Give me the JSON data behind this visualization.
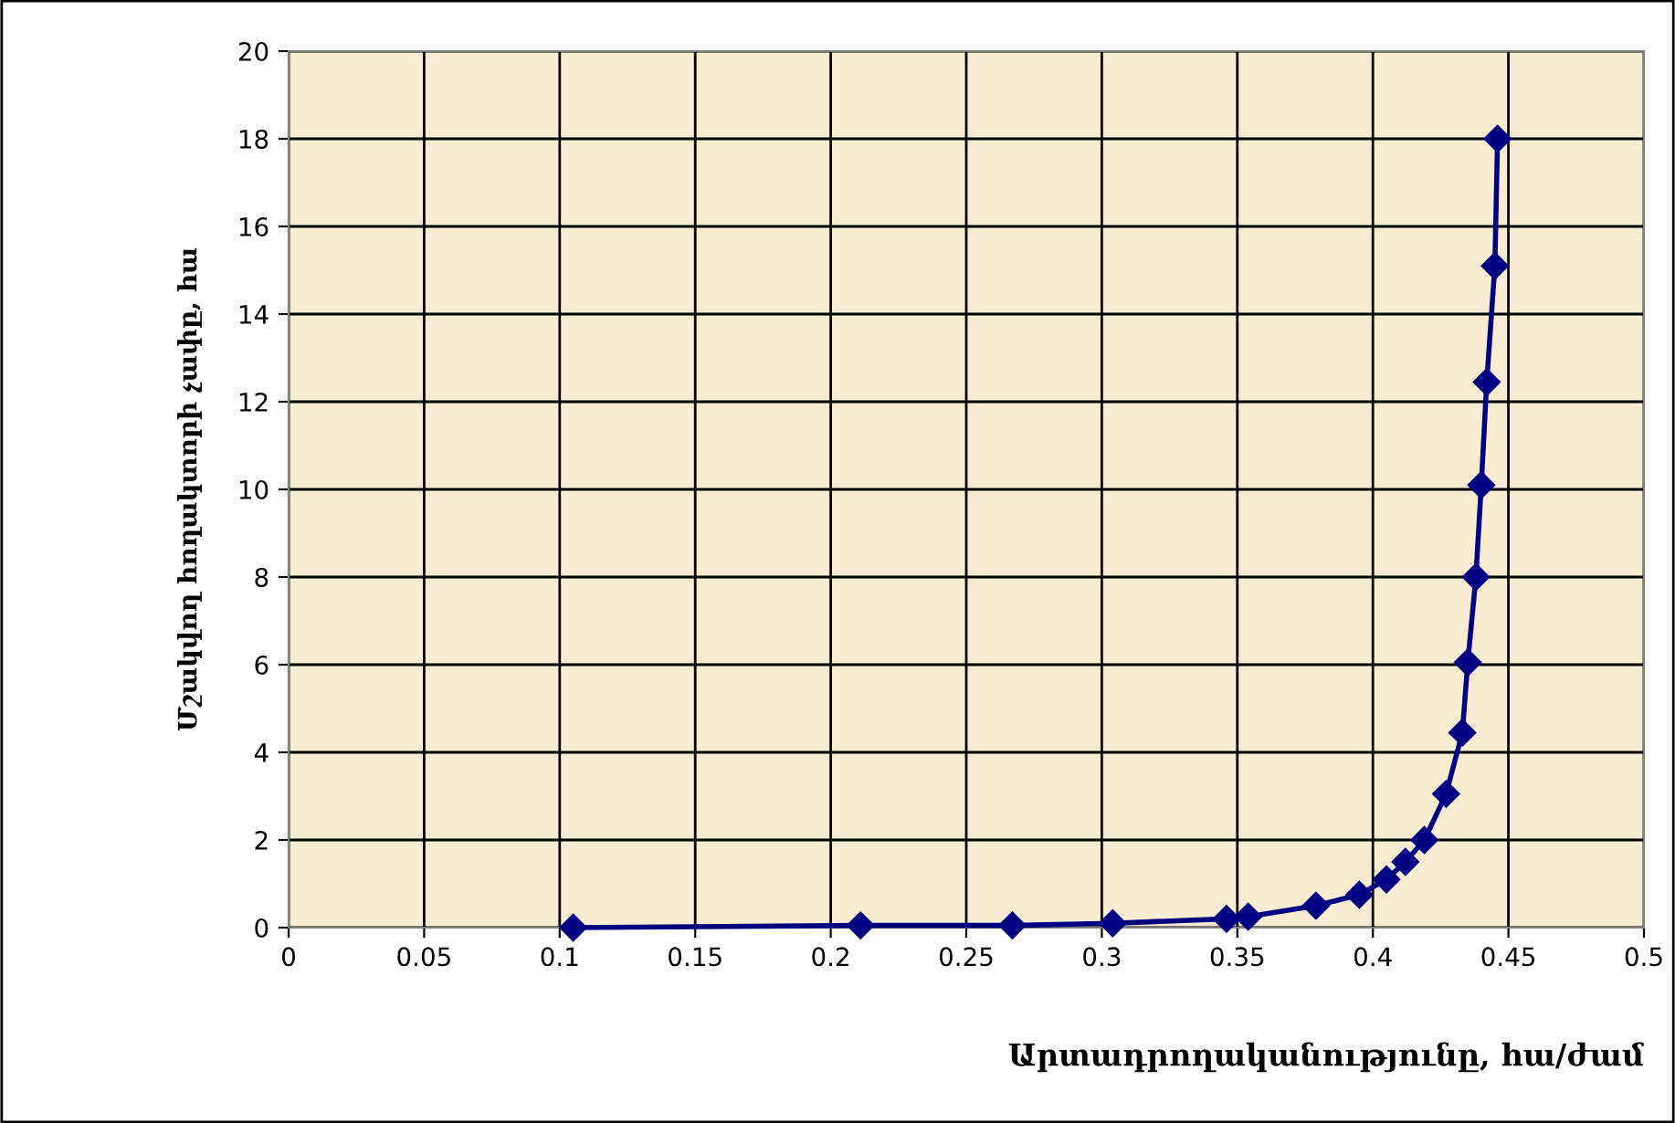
{
  "chart_data": {
    "type": "line",
    "xlabel": "Արտադրողականությունը, հա/ժամ",
    "ylabel": "Մշակվող հողակտորի չափը, հա",
    "x": [
      0.105,
      0.211,
      0.267,
      0.304,
      0.346,
      0.354,
      0.379,
      0.395,
      0.405,
      0.412,
      0.419,
      0.427,
      0.433,
      0.435,
      0.438,
      0.44,
      0.442,
      0.445,
      0.446
    ],
    "series": [
      {
        "color": "#000080",
        "values": [
          0,
          0.05,
          0.05,
          0.1,
          0.2,
          0.25,
          0.5,
          0.75,
          1.1,
          1.5,
          2.0,
          3.05,
          4.45,
          6.05,
          8.0,
          10.1,
          12.45,
          15.1,
          18.0
        ]
      }
    ],
    "xlim": [
      0,
      0.5
    ],
    "xticks": [
      0,
      0.05,
      0.1,
      0.15,
      0.2,
      0.25,
      0.3,
      0.35,
      0.4,
      0.45,
      0.5
    ],
    "ylim": [
      0,
      20
    ],
    "yticks": [
      0,
      2,
      4,
      6,
      8,
      10,
      12,
      14,
      16,
      18,
      20
    ],
    "grid": true,
    "marker": "diamond",
    "line_style": "solid",
    "legend": false
  }
}
